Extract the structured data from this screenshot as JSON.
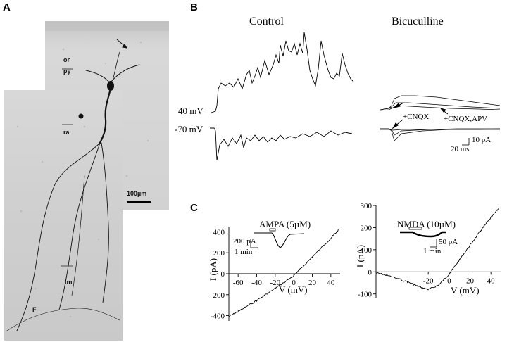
{
  "panel_labels": {
    "a": "A",
    "b": "B",
    "c": "C"
  },
  "panel_a": {
    "layers": {
      "or": "or",
      "py": "py",
      "ra": "ra",
      "lm": "lm",
      "f": "F"
    },
    "scale_bar": "100µm"
  },
  "panel_b": {
    "control_title": "Control",
    "bicuculline_title": "Bicuculline",
    "holding_pos": "40 mV",
    "holding_neg": "-70 mV",
    "annot_cnqx": "+CNQX",
    "annot_cnqx_apv": "+CNQX,APV",
    "scale_current": "10 pA",
    "scale_time": "20 ms"
  },
  "panel_c": {
    "ampa": {
      "inset_label": "AMPA (5µM)",
      "inset_scale_current": "200 pA",
      "inset_scale_time": "1 min",
      "ylabel": "I (pA)",
      "xlabel": "V (mV)",
      "x_ticks": [
        "-60",
        "-40",
        "-20",
        "0",
        "20",
        "40"
      ],
      "y_ticks": [
        "400",
        "200",
        "0",
        "-200",
        "-400"
      ]
    },
    "nmda": {
      "inset_label": "NMDA (10µM)",
      "inset_scale_current": "50 pA",
      "inset_scale_time": "1 min",
      "ylabel": "I (pA)",
      "xlabel": "V (mV)",
      "x_ticks": [
        "-20",
        "0",
        "20",
        "40"
      ],
      "y_ticks": [
        "300",
        "200",
        "100",
        "0",
        "-100"
      ]
    }
  },
  "chart_data": [
    {
      "type": "line",
      "title": "",
      "xlabel": "V (mV)",
      "ylabel": "I (pA)",
      "xlim": [
        -70,
        50
      ],
      "ylim": [
        -450,
        450
      ],
      "series": [
        {
          "x": [
            -70,
            -60,
            -40,
            -20,
            0,
            20,
            40,
            48
          ],
          "y": [
            -410,
            -360,
            -255,
            -140,
            -20,
            160,
            340,
            415
          ]
        }
      ]
    },
    {
      "type": "line",
      "title": "",
      "xlabel": "V (mV)",
      "ylabel": "I (pA)",
      "xlim": [
        -70,
        50
      ],
      "ylim": [
        -120,
        300
      ],
      "series": [
        {
          "x": [
            -70,
            -60,
            -40,
            -30,
            -20,
            -10,
            0,
            10,
            20,
            30,
            40,
            48
          ],
          "y": [
            -5,
            -15,
            -45,
            -65,
            -80,
            -60,
            -10,
            55,
            120,
            185,
            245,
            290
          ]
        }
      ]
    }
  ]
}
